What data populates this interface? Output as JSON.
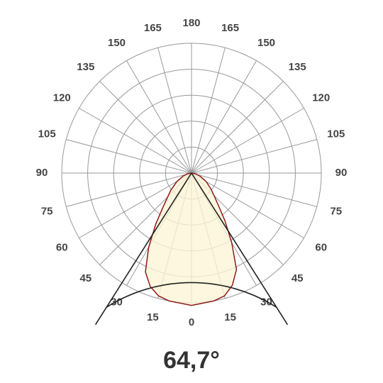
{
  "chart_data": {
    "type": "polar",
    "angle_ticks": [
      0,
      15,
      30,
      45,
      60,
      75,
      90,
      105,
      120,
      135,
      150,
      165,
      180
    ],
    "rlim": [
      0,
      1
    ],
    "rticks": [
      0.2,
      0.4,
      0.6,
      0.8,
      1
    ],
    "series": [
      {
        "color": "#8b1a1a",
        "fill": "#fcf5d6",
        "x": [
          -90,
          -80,
          -70,
          -60,
          -50,
          -40,
          -35,
          -30,
          -25,
          -20,
          -15,
          -10,
          0,
          10,
          15,
          20,
          25,
          30,
          35,
          40,
          50,
          60,
          70,
          80,
          90
        ],
        "values": [
          0,
          0.03,
          0.07,
          0.13,
          0.21,
          0.34,
          0.48,
          0.66,
          0.84,
          0.93,
          0.98,
          1.0,
          1.02,
          1.0,
          0.98,
          0.92,
          0.82,
          0.62,
          0.45,
          0.32,
          0.2,
          0.13,
          0.07,
          0.03,
          0
        ]
      }
    ],
    "beam_angle": {
      "value": 64.7,
      "label": "64,7°"
    }
  }
}
